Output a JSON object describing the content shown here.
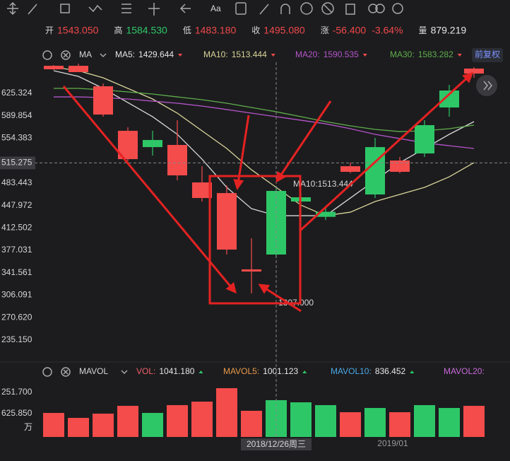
{
  "quote": [
    {
      "label": "开",
      "value": "1543.050",
      "color": "#f0484b"
    },
    {
      "label": "高",
      "value": "1584.530",
      "color": "#2ec768"
    },
    {
      "label": "低",
      "value": "1483.180",
      "color": "#f0484b"
    },
    {
      "label": "收",
      "value": "1495.080",
      "color": "#f0484b"
    },
    {
      "label": "涨",
      "value": "-56.400",
      "value2": "-3.64%",
      "color": "#f0484b"
    },
    {
      "label": "量",
      "value": "879.219",
      "color": "#e6e6e6"
    }
  ],
  "main_toolbar": {
    "indicator": "MA",
    "adjust_button": "前复权"
  },
  "volume_toolbar": {
    "indicator": "MAVOL",
    "items": [
      {
        "name": "VOL:",
        "value": "1041.180",
        "color": "#f0606a"
      },
      {
        "name": "MAVOL5:",
        "value": "1001.123",
        "color": "#e89a4a"
      },
      {
        "name": "MAVOL10:",
        "value": "836.452",
        "color": "#4aa8e8"
      },
      {
        "name": "MAVOL20:",
        "value": "",
        "color": "#c66ad8"
      }
    ],
    "axis_labels": [
      "251.700",
      "625.850",
      "万"
    ]
  },
  "crosshair": {
    "value": 515.275,
    "date": "2018/12/26周三",
    "tooltip": "MA10:1513.444",
    "low_label": "1307.000"
  },
  "chart_data": [
    {
      "type": "candlestick",
      "categories": [
        null,
        null,
        null,
        null,
        null,
        null,
        null,
        null,
        null,
        "2018/12/26周三",
        null,
        null,
        null,
        null,
        "2019/01",
        null,
        null,
        null
      ],
      "open": [
        668.9,
        668.9,
        636.5,
        566.1,
        540.3,
        543.7,
        484.4,
        467.6,
        346.9,
        370.4,
        454.2,
        430.0,
        510.1,
        465.4,
        519.1,
        530.3,
        603.0,
        664.5
      ],
      "high": [
        670.1,
        672.3,
        641.0,
        571.6,
        566.1,
        582.8,
        510.1,
        479.9,
        396.1,
        476.6,
        468.8,
        445.0,
        515.7,
        554.9,
        524.7,
        582.8,
        638.7,
        666.7
      ],
      "low": [
        662.2,
        658.9,
        588.4,
        518.0,
        526.9,
        487.8,
        454.2,
        370.4,
        308.8,
        364.7,
        392.7,
        425.0,
        499.0,
        459.8,
        499.0,
        524.7,
        588.4,
        649.9
      ],
      "close": [
        663.4,
        658.9,
        591.8,
        521.3,
        551.5,
        495.6,
        459.8,
        378.2,
        343.5,
        471.0,
        460.9,
        438.0,
        501.2,
        540.3,
        501.2,
        575.0,
        629.8,
        656.6
      ],
      "up_color": "#2ec768",
      "down_color": "#f44b4b",
      "series": [
        {
          "name": "MA5:",
          "legend_value": "1429.644",
          "color": "#d9d9d9",
          "values": [
            661.1,
            652.2,
            633.2,
            610.8,
            588.4,
            560.5,
            521.3,
            476.6,
            443.0,
            431.8,
            431.8,
            431.8,
            459.8,
            487.8,
            515.7,
            538.1,
            560.5,
            580.6
          ]
        },
        {
          "name": "MA10:",
          "legend_value": "1513.444",
          "color": "#d8d49a",
          "values": [
            666.7,
            661.1,
            649.9,
            633.2,
            616.4,
            594.0,
            566.1,
            538.1,
            504.5,
            476.6,
            448.6,
            431.8,
            437.4,
            454.2,
            465.4,
            476.6,
            493.3,
            515.7
          ]
        },
        {
          "name": "MA20:",
          "legend_value": "1590.535",
          "color": "#b455c9",
          "values": [
            619.7,
            619.7,
            618.6,
            616.4,
            613.0,
            609.7,
            605.2,
            599.7,
            594.0,
            588.4,
            582.8,
            577.2,
            569.4,
            560.5,
            553.7,
            547.0,
            542.5,
            538.1
          ]
        },
        {
          "name": "MA30:",
          "legend_value": "1583.282",
          "color": "#5fae4c",
          "values": [
            633.2,
            633.2,
            630.9,
            627.6,
            624.2,
            619.7,
            615.3,
            609.7,
            603.0,
            596.2,
            588.4,
            580.6,
            573.9,
            568.3,
            564.9,
            566.1,
            569.4,
            575.0
          ]
        }
      ],
      "ylim": [
        208,
        675
      ],
      "yticks": [
        625.324,
        589.854,
        554.383,
        483.443,
        447.972,
        412.502,
        377.031,
        341.561,
        306.091,
        {
          "value": 270.62,
          "label": "270.620"
        },
        {
          "value": 235.15,
          "label": "235.150"
        }
      ],
      "grid": false
    },
    {
      "type": "bar",
      "values": [
        709,
        563,
        688,
        918,
        709,
        939,
        1043,
        1439,
        772,
        1085,
        1022,
        939,
        730,
        855,
        730,
        939,
        855,
        918
      ],
      "ylim": [
        0,
        1460
      ]
    }
  ]
}
